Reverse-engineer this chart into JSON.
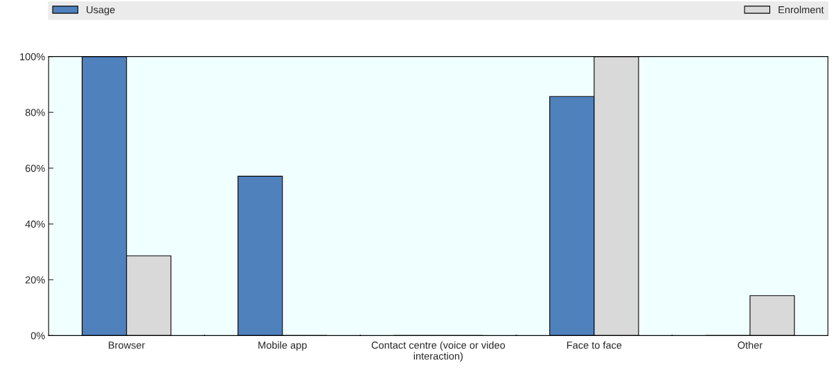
{
  "chart_data": {
    "type": "bar",
    "categories": [
      "Browser",
      "Mobile app",
      "Contact centre (voice or video\ninteraction)",
      "Face to face",
      "Other"
    ],
    "series": [
      {
        "name": "Usage",
        "color": "#4f81bd",
        "values": [
          100,
          57.1,
          0,
          85.7,
          0
        ]
      },
      {
        "name": "Enrolment",
        "color": "#d9d9d9",
        "values": [
          28.6,
          0,
          0,
          100,
          14.3
        ]
      }
    ],
    "ylim": [
      0,
      100
    ],
    "yticks": [
      {
        "value": 0,
        "label": "0%"
      },
      {
        "value": 20,
        "label": "20%"
      },
      {
        "value": 40,
        "label": "40%"
      },
      {
        "value": 60,
        "label": "60%"
      },
      {
        "value": 80,
        "label": "80%"
      },
      {
        "value": 100,
        "label": "100%"
      }
    ],
    "grid": false,
    "legend": "top"
  }
}
